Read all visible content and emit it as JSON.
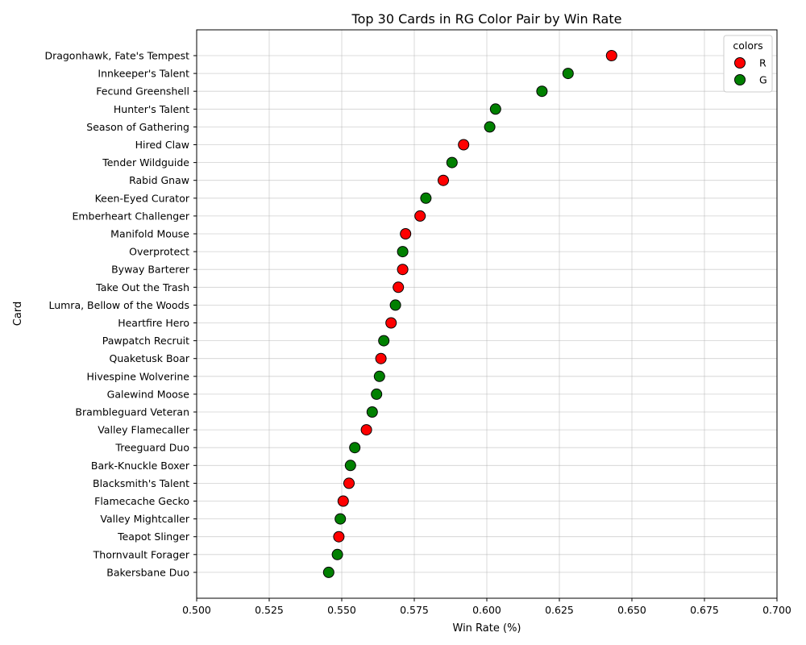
{
  "chart_data": {
    "type": "scatter",
    "title": "Top 30 Cards in RG Color Pair by Win Rate",
    "xlabel": "Win Rate (%)",
    "ylabel": "Card",
    "xlim": [
      0.5,
      0.7
    ],
    "xticks": [
      "0.500",
      "0.525",
      "0.550",
      "0.575",
      "0.600",
      "0.625",
      "0.650",
      "0.675",
      "0.700"
    ],
    "grid": true,
    "legend": {
      "title": "colors",
      "placement": "top-right",
      "entries": [
        {
          "label": "R",
          "color": "#ff0000"
        },
        {
          "label": "G",
          "color": "#008000"
        }
      ]
    },
    "points": [
      {
        "card": "Dragonhawk, Fate's Tempest",
        "win_rate": 0.643,
        "color": "R"
      },
      {
        "card": "Innkeeper's Talent",
        "win_rate": 0.628,
        "color": "G"
      },
      {
        "card": "Fecund Greenshell",
        "win_rate": 0.619,
        "color": "G"
      },
      {
        "card": "Hunter's Talent",
        "win_rate": 0.603,
        "color": "G"
      },
      {
        "card": "Season of Gathering",
        "win_rate": 0.601,
        "color": "G"
      },
      {
        "card": "Hired Claw",
        "win_rate": 0.592,
        "color": "R"
      },
      {
        "card": "Tender Wildguide",
        "win_rate": 0.588,
        "color": "G"
      },
      {
        "card": "Rabid Gnaw",
        "win_rate": 0.585,
        "color": "R"
      },
      {
        "card": "Keen-Eyed Curator",
        "win_rate": 0.579,
        "color": "G"
      },
      {
        "card": "Emberheart Challenger",
        "win_rate": 0.577,
        "color": "R"
      },
      {
        "card": "Manifold Mouse",
        "win_rate": 0.572,
        "color": "R"
      },
      {
        "card": "Overprotect",
        "win_rate": 0.571,
        "color": "G"
      },
      {
        "card": "Byway Barterer",
        "win_rate": 0.571,
        "color": "R"
      },
      {
        "card": "Take Out the Trash",
        "win_rate": 0.5695,
        "color": "R"
      },
      {
        "card": "Lumra, Bellow of the Woods",
        "win_rate": 0.5685,
        "color": "G"
      },
      {
        "card": "Heartfire Hero",
        "win_rate": 0.567,
        "color": "R"
      },
      {
        "card": "Pawpatch Recruit",
        "win_rate": 0.5645,
        "color": "G"
      },
      {
        "card": "Quaketusk Boar",
        "win_rate": 0.5635,
        "color": "R"
      },
      {
        "card": "Hivespine Wolverine",
        "win_rate": 0.563,
        "color": "G"
      },
      {
        "card": "Galewind Moose",
        "win_rate": 0.562,
        "color": "G"
      },
      {
        "card": "Brambleguard Veteran",
        "win_rate": 0.5605,
        "color": "G"
      },
      {
        "card": "Valley Flamecaller",
        "win_rate": 0.5585,
        "color": "R"
      },
      {
        "card": "Treeguard Duo",
        "win_rate": 0.5545,
        "color": "G"
      },
      {
        "card": "Bark-Knuckle Boxer",
        "win_rate": 0.553,
        "color": "G"
      },
      {
        "card": "Blacksmith's Talent",
        "win_rate": 0.5525,
        "color": "R"
      },
      {
        "card": "Flamecache Gecko",
        "win_rate": 0.5505,
        "color": "R"
      },
      {
        "card": "Valley Mightcaller",
        "win_rate": 0.5495,
        "color": "G"
      },
      {
        "card": "Teapot Slinger",
        "win_rate": 0.549,
        "color": "R"
      },
      {
        "card": "Thornvault Forager",
        "win_rate": 0.5485,
        "color": "G"
      },
      {
        "card": "Bakersbane Duo",
        "win_rate": 0.5455,
        "color": "G"
      }
    ]
  }
}
